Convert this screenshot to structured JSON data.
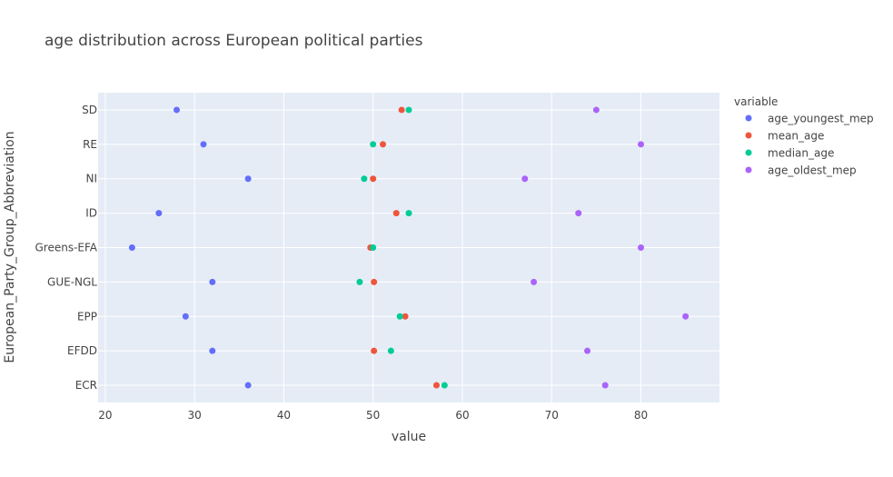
{
  "chart_data": {
    "type": "scatter",
    "title": "age distribution across European political parties",
    "xlabel": "value",
    "ylabel": "European_Party_Group_Abbreviation",
    "xlim": [
      19.2,
      88.8
    ],
    "xticks": [
      20,
      30,
      40,
      50,
      60,
      70,
      80
    ],
    "categories": [
      "SD",
      "RE",
      "NI",
      "ID",
      "Greens-EFA",
      "GUE-NGL",
      "EPP",
      "EFDD",
      "ECR"
    ],
    "grid": true,
    "legend_title": "variable",
    "legend_position": "top-right",
    "series": [
      {
        "name": "age_youngest_mep",
        "color": "#636efa",
        "values": [
          28,
          31,
          36,
          26,
          23,
          32,
          29,
          32,
          36
        ]
      },
      {
        "name": "mean_age",
        "color": "#ef553b",
        "values": [
          53.2,
          51.1,
          50,
          52.6,
          49.7,
          50.1,
          53.6,
          50.1,
          57.1
        ]
      },
      {
        "name": "median_age",
        "color": "#00cc96",
        "values": [
          54,
          50,
          49,
          54,
          50,
          48.5,
          53,
          52,
          58
        ]
      },
      {
        "name": "age_oldest_mep",
        "color": "#ab63fa",
        "values": [
          75,
          80,
          67,
          73,
          80,
          68,
          85,
          74,
          76
        ]
      }
    ]
  }
}
